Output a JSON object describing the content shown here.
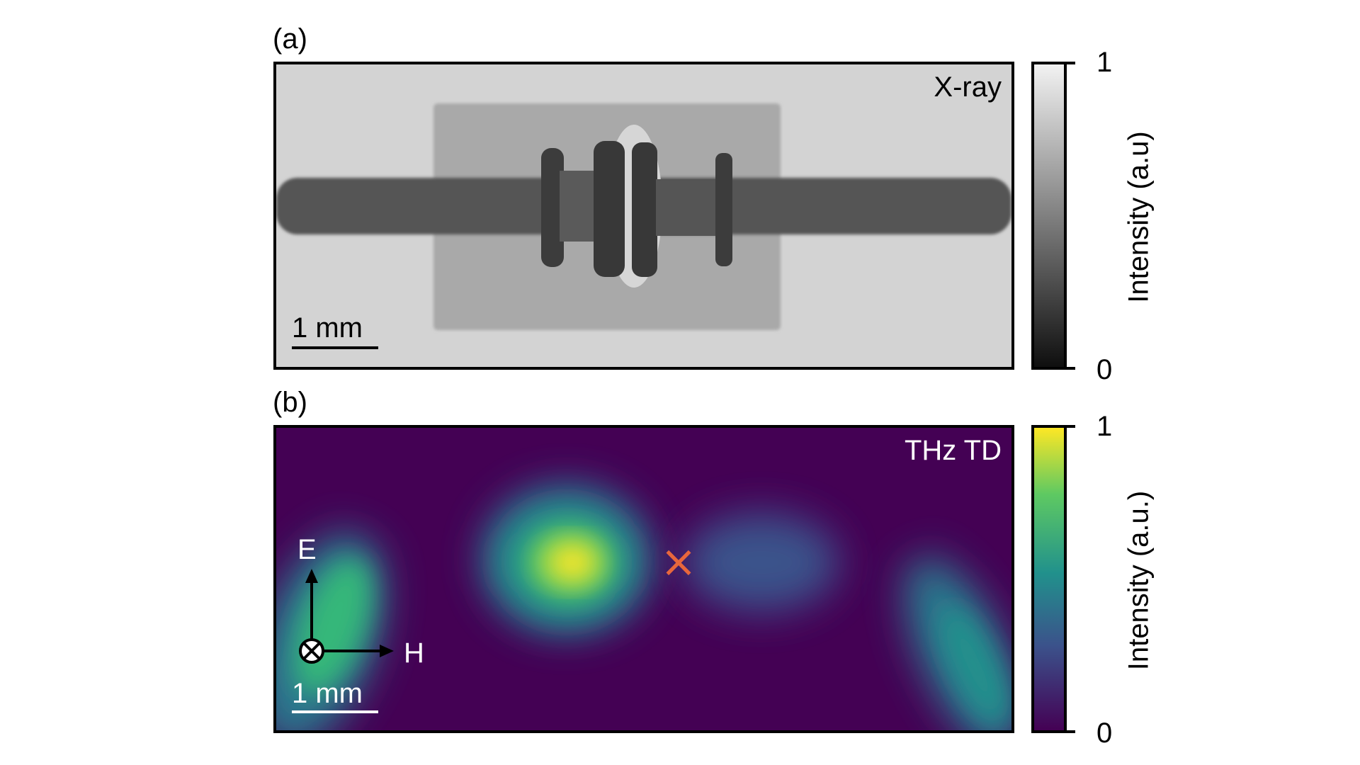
{
  "panel_a": {
    "label": "(a)",
    "title": "X-ray",
    "scalebar": "1 mm",
    "colorbar": {
      "label": "Intensity (a.u)",
      "max": "1",
      "min": "0",
      "colormap": "gray"
    }
  },
  "panel_b": {
    "label": "(b)",
    "title": "THz TD",
    "scalebar": "1 mm",
    "axes": {
      "E": "E",
      "H": "H"
    },
    "colorbar": {
      "label": "Intensity (a.u.)",
      "max": "1",
      "min": "0",
      "colormap": "viridis"
    },
    "marker": "×",
    "colors": {
      "background": "#440154",
      "peak": "#fde725",
      "marker": "#e8673c"
    }
  }
}
